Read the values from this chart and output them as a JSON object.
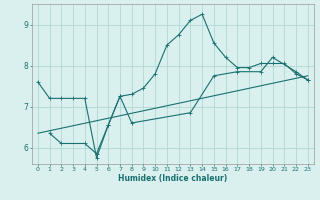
{
  "title": "",
  "xlabel": "Humidex (Indice chaleur)",
  "ylabel": "",
  "background_color": "#d9f0ee",
  "grid_color": "#b0d8d5",
  "line_color": "#1a7070",
  "xlim": [
    -0.5,
    23.5
  ],
  "ylim": [
    5.6,
    9.5
  ],
  "yticks": [
    6,
    7,
    8,
    9
  ],
  "xticks": [
    0,
    1,
    2,
    3,
    4,
    5,
    6,
    7,
    8,
    9,
    10,
    11,
    12,
    13,
    14,
    15,
    16,
    17,
    18,
    19,
    20,
    21,
    22,
    23
  ],
  "line1_x": [
    0,
    1,
    2,
    3,
    4,
    5,
    6,
    7,
    8,
    9,
    10,
    11,
    12,
    13,
    14,
    15,
    16,
    17,
    18,
    19,
    20,
    21,
    22,
    23
  ],
  "line1_y": [
    7.6,
    7.2,
    7.2,
    7.2,
    7.2,
    5.75,
    6.55,
    7.25,
    7.3,
    7.45,
    7.8,
    8.5,
    8.75,
    9.1,
    9.25,
    8.55,
    8.2,
    7.95,
    7.95,
    8.05,
    8.05,
    8.05,
    7.8,
    7.65
  ],
  "line2_x": [
    1,
    2,
    4,
    5,
    6,
    7,
    8,
    13,
    15,
    17,
    19,
    20,
    22,
    23
  ],
  "line2_y": [
    6.35,
    6.1,
    6.1,
    5.85,
    6.55,
    7.25,
    6.6,
    6.85,
    7.75,
    7.85,
    7.85,
    8.2,
    7.85,
    7.65
  ],
  "line3_x": [
    0,
    23
  ],
  "line3_y": [
    6.35,
    7.75
  ]
}
